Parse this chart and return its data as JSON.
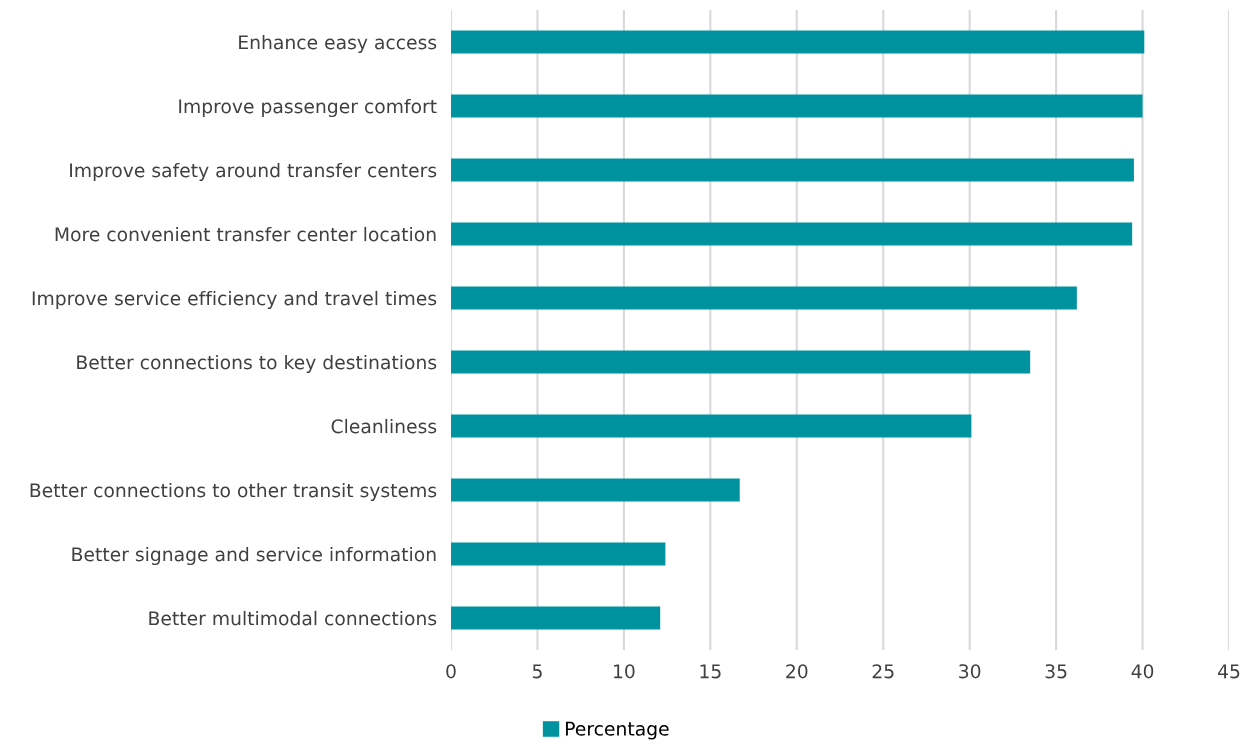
{
  "chart_data": {
    "type": "bar",
    "orientation": "horizontal",
    "categories": [
      "Enhance easy access",
      "Improve passenger comfort",
      "Improve safety around transfer centers",
      "More convenient transfer center location",
      "Improve service efficiency and travel times",
      "Better connections to key destinations",
      "Cleanliness",
      "Better connections to other transit systems",
      "Better signage and service information",
      "Better multimodal connections"
    ],
    "series": [
      {
        "name": "Percentage",
        "color": "#00939f",
        "values": [
          40.1,
          40.0,
          39.5,
          39.4,
          36.2,
          33.5,
          30.1,
          16.7,
          12.4,
          12.1
        ]
      }
    ],
    "xlim": [
      0,
      45
    ],
    "xticks": [
      0,
      5,
      10,
      15,
      20,
      25,
      30,
      35,
      40,
      45
    ],
    "grid": "x",
    "legend": "bottom"
  }
}
